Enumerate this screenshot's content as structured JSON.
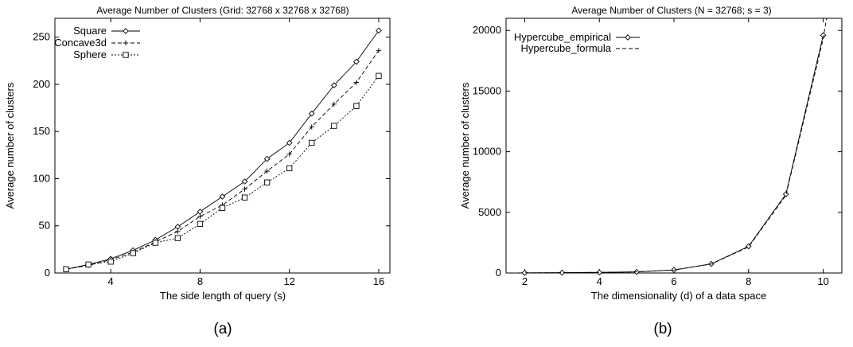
{
  "figure": {
    "caption_a": "(a)",
    "caption_b": "(b)"
  },
  "chart_data": [
    {
      "type": "line",
      "title": "Average Number of Clusters (Grid: 32768 x 32768 x 32768)",
      "xlabel": "The side length of query (s)",
      "ylabel": "Average number of clusters",
      "xlim": [
        1.5,
        16.5
      ],
      "ylim": [
        0,
        270
      ],
      "xticks": [
        4,
        8,
        12,
        16
      ],
      "yticks": [
        0,
        50,
        100,
        150,
        200,
        250
      ],
      "grid": false,
      "legend_position": "top-left",
      "x": [
        2,
        3,
        4,
        5,
        6,
        7,
        8,
        9,
        10,
        11,
        12,
        13,
        14,
        15,
        16
      ],
      "series": [
        {
          "name": "Square",
          "marker": "diamond",
          "dash": "solid",
          "values": [
            4,
            9,
            15,
            24,
            35,
            49,
            65,
            81,
            97,
            121,
            138,
            169,
            199,
            224,
            257
          ]
        },
        {
          "name": "Concave3d",
          "marker": "plus",
          "dash": "dashed",
          "values": [
            4,
            8,
            14,
            22,
            33,
            44,
            60,
            72,
            89,
            108,
            126,
            155,
            179,
            202,
            236
          ]
        },
        {
          "name": "Sphere",
          "marker": "square",
          "dash": "dotted",
          "values": [
            4,
            9,
            12,
            21,
            32,
            37,
            52,
            69,
            80,
            96,
            111,
            138,
            156,
            177,
            209
          ]
        }
      ]
    },
    {
      "type": "line",
      "title": "Average Number of Clusters (N = 32768; s = 3)",
      "xlabel": "The dimensionality (d) of a data space",
      "ylabel": "Average number of clusters",
      "xlim": [
        1.5,
        10.5
      ],
      "ylim": [
        0,
        21000
      ],
      "xticks": [
        2,
        4,
        6,
        8,
        10
      ],
      "yticks": [
        0,
        5000,
        10000,
        15000,
        20000
      ],
      "grid": false,
      "legend_position": "top-left",
      "series": [
        {
          "name": "Hypercube_empirical",
          "marker": "diamond",
          "dash": "solid",
          "x": [
            2,
            3,
            4,
            5,
            6,
            7,
            8,
            9,
            10
          ],
          "values": [
            9,
            27,
            50,
            90,
            250,
            750,
            2200,
            6500,
            19600
          ]
        },
        {
          "name": "Hypercube_formula",
          "marker": "none",
          "dash": "dashed",
          "x": [
            1.5,
            2,
            3,
            4,
            5,
            6,
            7,
            8,
            9,
            10,
            10.4
          ],
          "values": [
            4,
            9,
            27,
            49,
            90,
            245,
            735,
            2150,
            6400,
            19300,
            27000
          ]
        }
      ]
    }
  ]
}
